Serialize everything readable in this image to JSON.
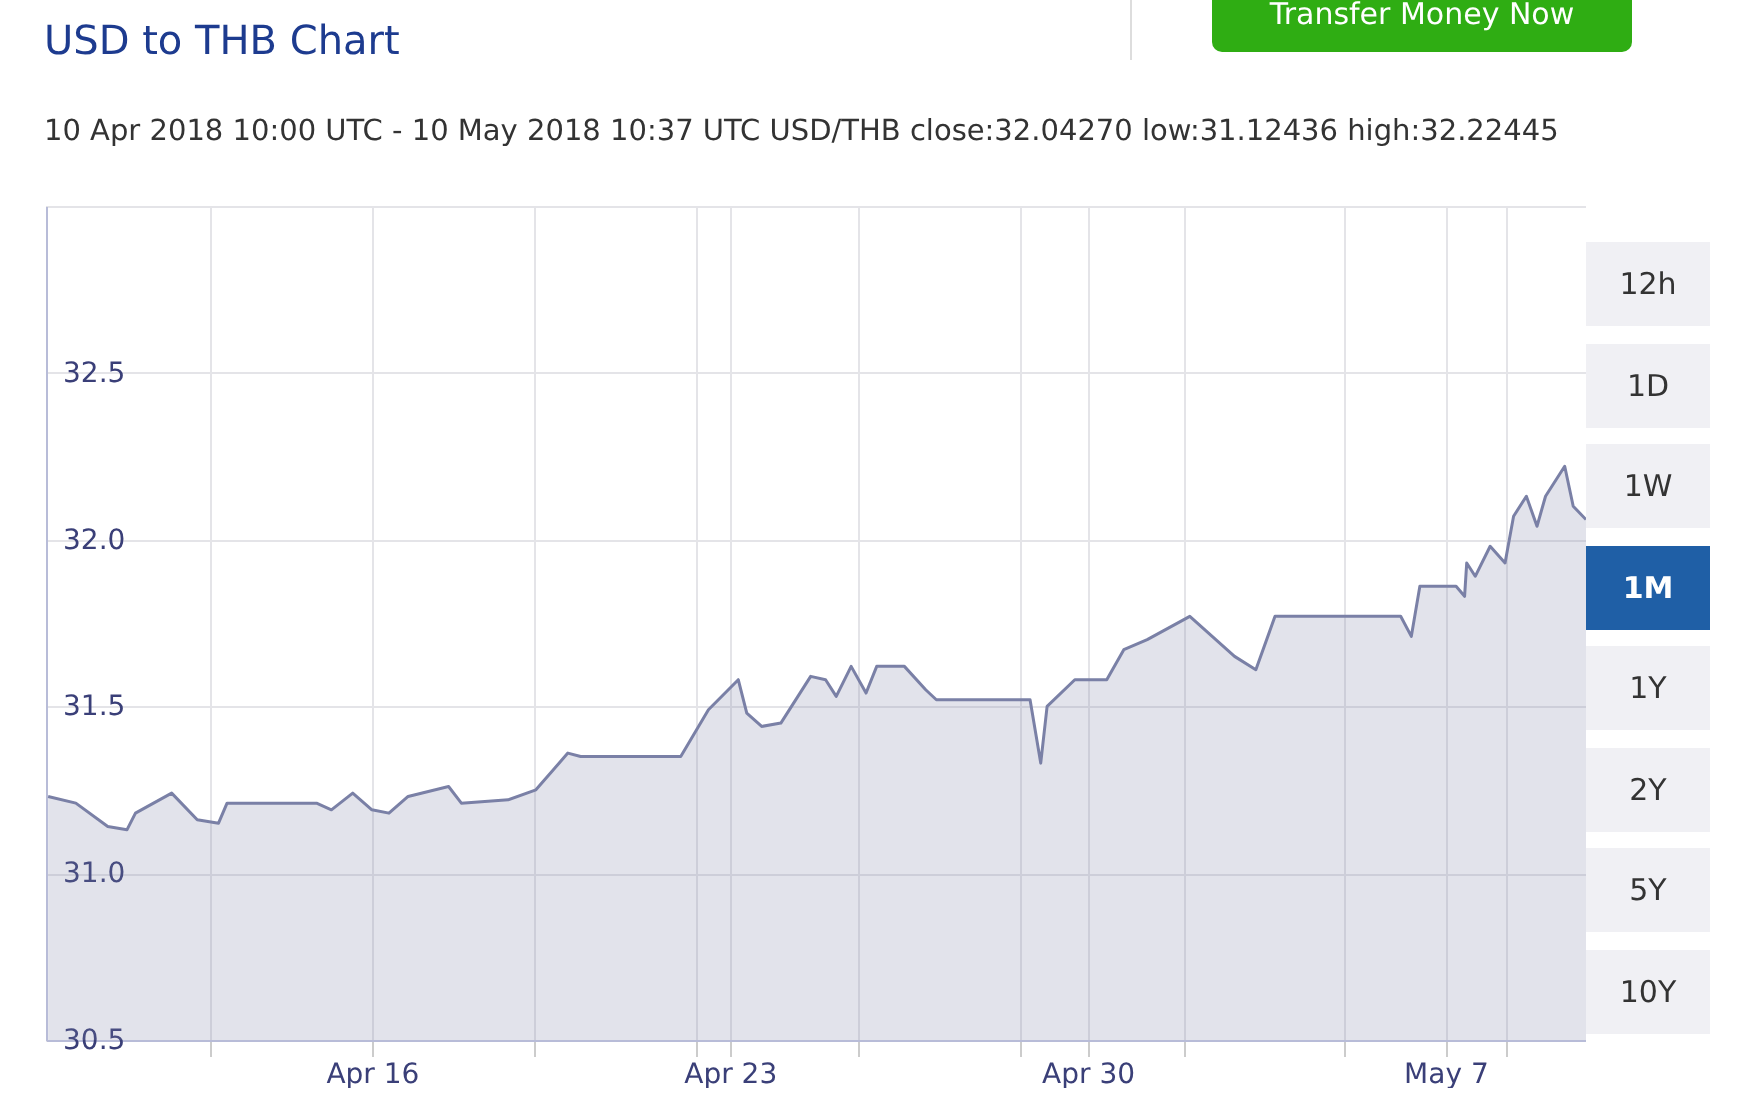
{
  "chart_data": {
    "type": "area",
    "title": "USD to THB Chart",
    "subtitle": "10 Apr 2018 10:00 UTC - 10 May 2018 10:37 UTC   USD/THB close:32.04270 low:31.12436 high:32.22445",
    "annotations": [
      "Transfer Money Now",
      "12h",
      "1D",
      "1W",
      "1M",
      "1Y",
      "2Y",
      "5Y",
      "10Y"
    ],
    "x": [
      "2018-04-09T16:00",
      "2018-04-10T05:00",
      "2018-04-10T20:00",
      "2018-04-11T05:00",
      "2018-04-11T09:00",
      "2018-04-12T02:00",
      "2018-04-12T14:00",
      "2018-04-13T00:00",
      "2018-04-13T04:00",
      "2018-04-14T22:00",
      "2018-04-15T05:00",
      "2018-04-15T15:00",
      "2018-04-16T00:00",
      "2018-04-16T08:00",
      "2018-04-16T17:00",
      "2018-04-17T12:00",
      "2018-04-17T18:00",
      "2018-04-18T16:00",
      "2018-04-19T05:00",
      "2018-04-19T20:00",
      "2018-04-20T02:00",
      "2018-04-22T01:00",
      "2018-04-22T14:00",
      "2018-04-23T04:00",
      "2018-04-23T08:00",
      "2018-04-23T15:00",
      "2018-04-24T00:00",
      "2018-04-24T14:00",
      "2018-04-24T21:00",
      "2018-04-25T02:00",
      "2018-04-25T09:00",
      "2018-04-25T16:00",
      "2018-04-25T21:00",
      "2018-04-26T10:00",
      "2018-04-26T20:00",
      "2018-04-27T01:00",
      "2018-04-28T21:00",
      "2018-04-29T02:00",
      "2018-04-29T05:00",
      "2018-04-29T18:00",
      "2018-04-30T09:00",
      "2018-04-30T17:00",
      "2018-05-01T04:00",
      "2018-05-02T00:00",
      "2018-05-02T21:00",
      "2018-05-03T07:00",
      "2018-05-03T16:00",
      "2018-05-04T04:00",
      "2018-05-05T17:00",
      "2018-05-06T03:00",
      "2018-05-06T08:00",
      "2018-05-06T12:00",
      "2018-05-07T05:00",
      "2018-05-07T09:00",
      "2018-05-07T10:00",
      "2018-05-07T14:00",
      "2018-05-07T21:00",
      "2018-05-08T04:00",
      "2018-05-08T08:00",
      "2018-05-08T14:00",
      "2018-05-08T19:00",
      "2018-05-08T23:00",
      "2018-05-09T08:00",
      "2018-05-09T12:00",
      "2018-05-09T18:00"
    ],
    "series": [
      {
        "color": "#7a80a6",
        "values": [
          31.23,
          31.21,
          31.14,
          31.13,
          31.18,
          31.24,
          31.16,
          31.15,
          31.21,
          31.21,
          31.19,
          31.24,
          31.19,
          31.18,
          31.23,
          31.26,
          31.21,
          31.22,
          31.25,
          31.36,
          31.35,
          31.35,
          31.49,
          31.58,
          31.48,
          31.44,
          31.45,
          31.59,
          31.58,
          31.53,
          31.62,
          31.54,
          31.62,
          31.62,
          31.55,
          31.52,
          31.52,
          31.33,
          31.5,
          31.58,
          31.58,
          31.67,
          31.7,
          31.77,
          31.65,
          31.61,
          31.77,
          31.77,
          31.77,
          31.77,
          31.71,
          31.86,
          31.86,
          31.83,
          31.93,
          31.89,
          31.98,
          31.93,
          32.07,
          32.13,
          32.04,
          32.13,
          32.22,
          32.1,
          32.06
        ]
      }
    ],
    "xlim": [
      "2018-04-09T15:00",
      "2018-05-09T18:00"
    ],
    "xticks": [
      {
        "value": "2018-04-12T20:00",
        "label": null
      },
      {
        "value": "2018-04-16",
        "label": "Apr 16"
      },
      {
        "value": "2018-04-19T04:00",
        "label": null
      },
      {
        "value": "2018-04-22T08:00",
        "label": null
      },
      {
        "value": "2018-04-23",
        "label": "Apr 23"
      },
      {
        "value": "2018-04-25T12:00",
        "label": null
      },
      {
        "value": "2018-04-28T16:00",
        "label": null
      },
      {
        "value": "2018-04-30",
        "label": "Apr 30"
      },
      {
        "value": "2018-05-01T21:00",
        "label": null
      },
      {
        "value": "2018-05-05T00:30",
        "label": null
      },
      {
        "value": "2018-05-07",
        "label": "May 7"
      },
      {
        "value": "2018-05-08T04:30",
        "label": null
      }
    ],
    "ylim": [
      30.5,
      33
    ],
    "yticks": [
      30.5,
      {
        "value": 31,
        "label": "31.0"
      },
      31.5,
      {
        "value": 32,
        "label": "32.0"
      },
      32.5
    ],
    "grid": true,
    "marker": "none",
    "line_style": "solid"
  }
}
